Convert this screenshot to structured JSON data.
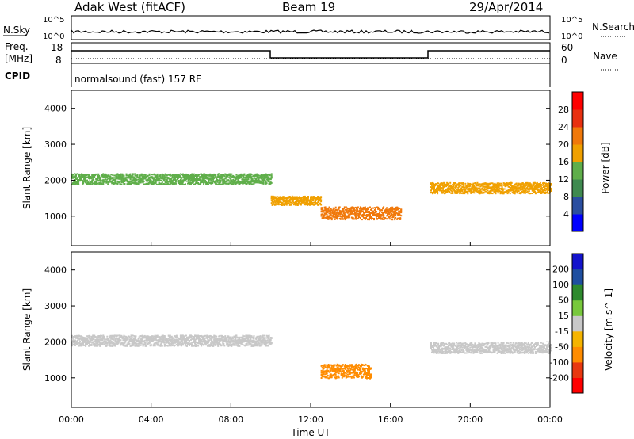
{
  "header": {
    "left": "Adak West (fitACF)",
    "center": "Beam 19",
    "right": "29/Apr/2014"
  },
  "noise_panel": {
    "left_label": "N.Sky",
    "right_label": "N.Search",
    "left_ticks": [
      "10^5",
      "10^0"
    ],
    "right_ticks": [
      "10^5",
      "10^0"
    ]
  },
  "freq_panel": {
    "left_label_1": "Freq.",
    "left_label_2": "[MHz]",
    "right_label": "Nave",
    "left_ticks": [
      "18",
      "8"
    ],
    "right_ticks": [
      "60",
      "0"
    ]
  },
  "cpid_panel": {
    "label": "CPID",
    "text": "normalsound (fast) 157 RF"
  },
  "axes": {
    "ylabel": "Slant Range [km]",
    "yticks": [
      1000,
      2000,
      3000,
      4000
    ],
    "yrange": [
      180,
      4500
    ],
    "xlabel": "Time UT",
    "xticks": [
      "00:00",
      "04:00",
      "08:00",
      "12:00",
      "16:00",
      "20:00",
      "00:00"
    ],
    "xrange_hours": [
      0,
      24
    ]
  },
  "colors": {
    "power": [
      "#0000ff",
      "#2a4ea0",
      "#3f8a50",
      "#5fae4a",
      "#f0a000",
      "#f0780a",
      "#e83010",
      "#ff0000"
    ],
    "velocity": [
      "#ff0000",
      "#e83810",
      "#ff8c00",
      "#f5b400",
      "#c8c8c8",
      "#78c83c",
      "#2e8a2e",
      "#1f4fa0",
      "#1414cc"
    ]
  },
  "chart_data": [
    {
      "type": "heatmap",
      "title": "",
      "xlabel": "Time UT",
      "ylabel": "Slant Range [km]",
      "colorbar_label": "Power [dB]",
      "colorbar_ticks": [
        "4",
        "8",
        "12",
        "16",
        "20",
        "24",
        "28"
      ],
      "x": [
        "00:00",
        "04:00",
        "08:00",
        "12:00",
        "16:00",
        "20:00",
        "00:00"
      ],
      "bands": [
        {
          "t_start": 0,
          "t_end": 10,
          "range_center": 2050,
          "range_width": 300,
          "power_db": 12
        },
        {
          "t_start": 10,
          "t_end": 12.5,
          "range_center": 1450,
          "range_width": 250,
          "power_db": 16
        },
        {
          "t_start": 12.5,
          "t_end": 16.5,
          "range_center": 1100,
          "range_width": 350,
          "power_db": 20
        },
        {
          "t_start": 18,
          "t_end": 24,
          "range_center": 1800,
          "range_width": 300,
          "power_db": 16
        }
      ]
    },
    {
      "type": "heatmap",
      "title": "",
      "xlabel": "Time UT",
      "ylabel": "Slant Range [km]",
      "colorbar_label": "Velocity [m s^-1]",
      "colorbar_ticks": [
        "-200",
        "-100",
        "-50",
        "-15",
        "15",
        "50",
        "100",
        "200"
      ],
      "x": [
        "00:00",
        "04:00",
        "08:00",
        "12:00",
        "16:00",
        "20:00",
        "00:00"
      ],
      "bands": [
        {
          "t_start": 0,
          "t_end": 10,
          "range_center": 2050,
          "range_width": 300,
          "velocity": 0
        },
        {
          "t_start": 12.5,
          "t_end": 15,
          "range_center": 1200,
          "range_width": 400,
          "velocity": -50
        },
        {
          "t_start": 18,
          "t_end": 24,
          "range_center": 1850,
          "range_width": 300,
          "velocity": 0
        }
      ]
    }
  ]
}
